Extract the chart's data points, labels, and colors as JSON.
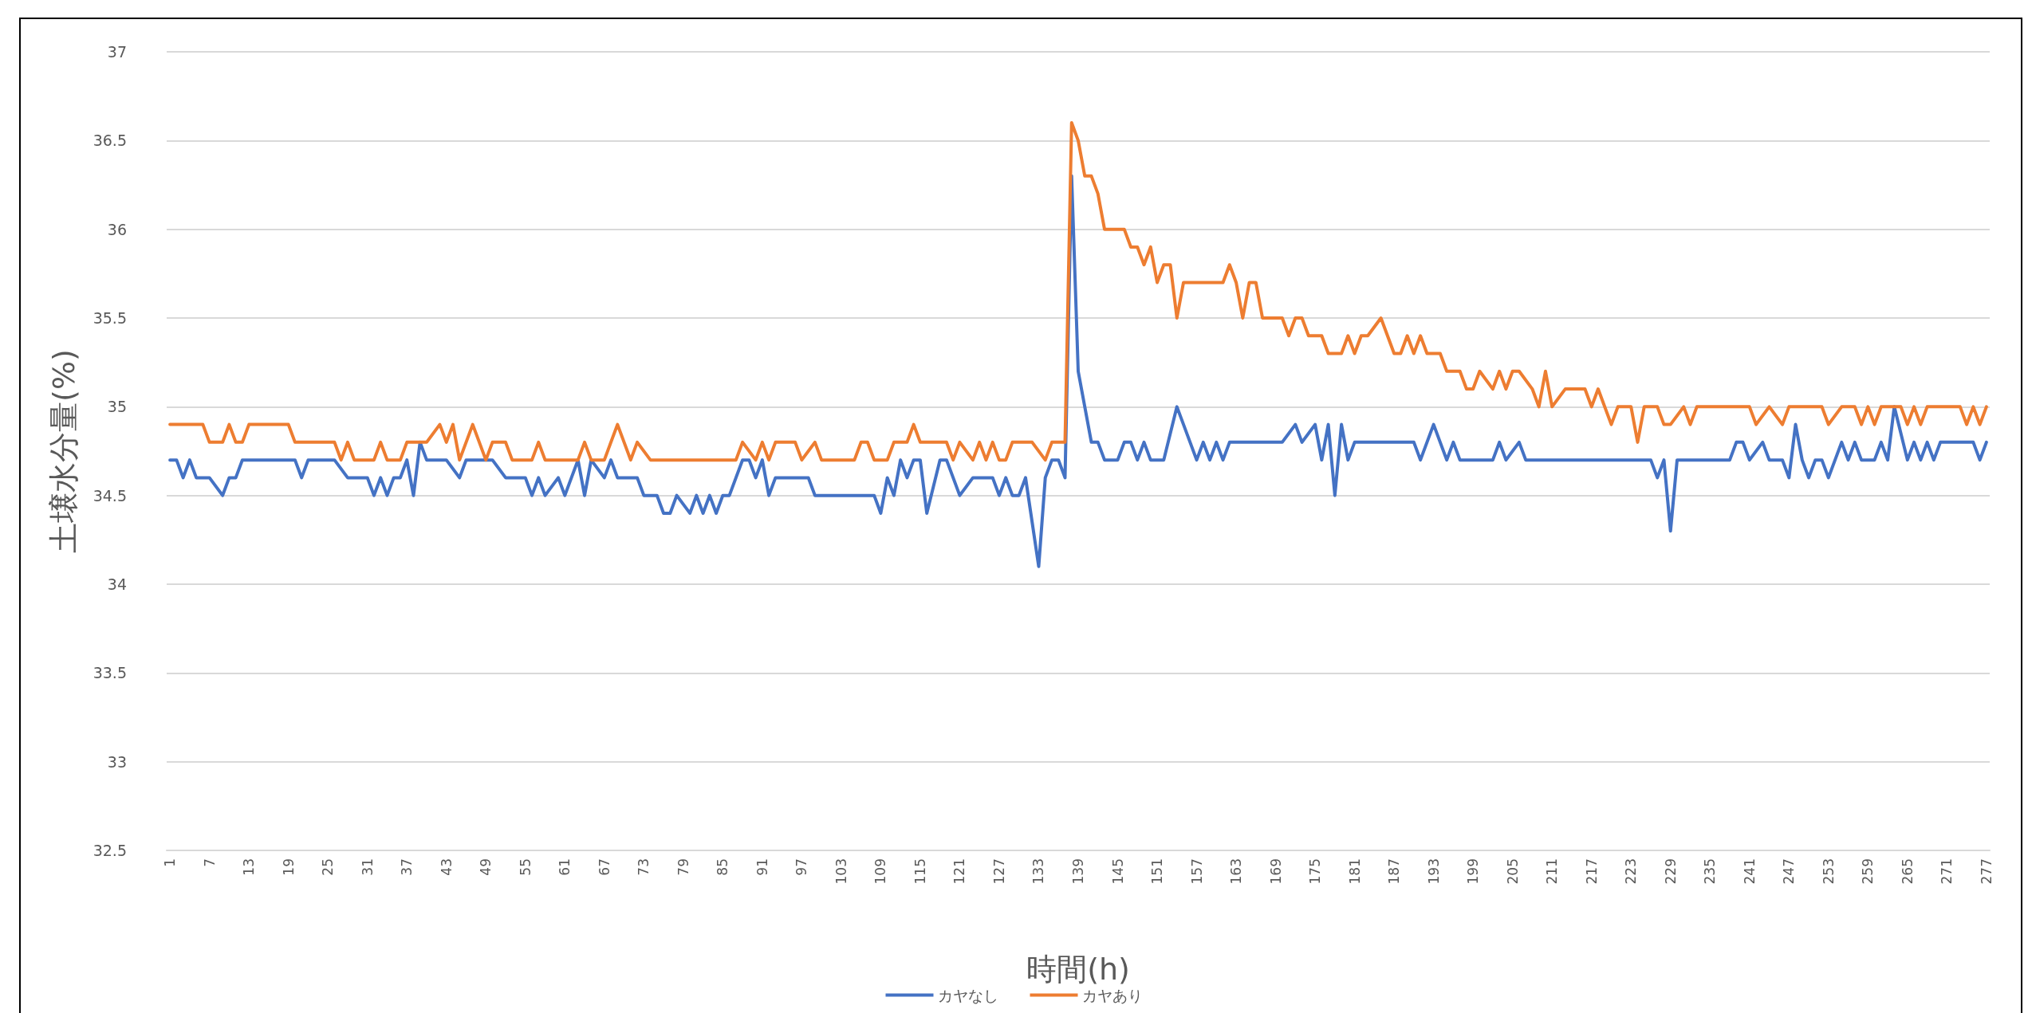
{
  "chart_data": {
    "type": "line",
    "xlabel": "時間(h)",
    "ylabel": "土壌水分量(%)",
    "xlim": [
      0.5,
      277.5
    ],
    "xticks": [
      1,
      7,
      13,
      19,
      25,
      31,
      37,
      43,
      49,
      55,
      61,
      67,
      73,
      79,
      85,
      91,
      97,
      103,
      109,
      115,
      121,
      127,
      133,
      139,
      145,
      151,
      157,
      163,
      169,
      175,
      181,
      187,
      193,
      199,
      205,
      211,
      217,
      223,
      229,
      235,
      241,
      247,
      253,
      259,
      265,
      271,
      277
    ],
    "ylim": [
      32.5,
      37
    ],
    "yticks": [
      32.5,
      33,
      33.5,
      34,
      34.5,
      35,
      35.5,
      36,
      36.5,
      37
    ],
    "grid": "y",
    "legend": "bottom",
    "marker": "none",
    "line_style": "solid",
    "series": [
      {
        "name": "カヤなし",
        "color": "#4472c4",
        "x": [
          1,
          2,
          3,
          4,
          5,
          7,
          9,
          10,
          11,
          12,
          20,
          21,
          22,
          26,
          28,
          31,
          32,
          33,
          34,
          35,
          36,
          37,
          38,
          39,
          40,
          43,
          45,
          46,
          50,
          52,
          55,
          56,
          57,
          58,
          60,
          61,
          63,
          64,
          65,
          67,
          68,
          69,
          72,
          73,
          75,
          76,
          77,
          78,
          80,
          81,
          82,
          83,
          84,
          85,
          86,
          87,
          88,
          89,
          90,
          91,
          92,
          93,
          98,
          99,
          108,
          109,
          110,
          111,
          112,
          113,
          114,
          115,
          116,
          118,
          119,
          121,
          123,
          126,
          127,
          128,
          129,
          130,
          131,
          133,
          134,
          135,
          136,
          137,
          138,
          139,
          140,
          141,
          142,
          143,
          145,
          146,
          147,
          148,
          149,
          150,
          152,
          154,
          155,
          156,
          157,
          158,
          159,
          160,
          161,
          162,
          170,
          172,
          173,
          175,
          176,
          177,
          178,
          179,
          180,
          181,
          190,
          191,
          193,
          194,
          195,
          196,
          197,
          202,
          203,
          204,
          206,
          207,
          226,
          227,
          228,
          229,
          230,
          238,
          239,
          240,
          241,
          243,
          244,
          246,
          247,
          248,
          249,
          250,
          251,
          252,
          253,
          255,
          256,
          257,
          258,
          260,
          261,
          262,
          263,
          265,
          266,
          267,
          268,
          269,
          270,
          275,
          276,
          277
        ],
        "values": [
          34.7,
          34.7,
          34.6,
          34.7,
          34.6,
          34.6,
          34.5,
          34.6,
          34.6,
          34.7,
          34.7,
          34.6,
          34.7,
          34.7,
          34.6,
          34.6,
          34.5,
          34.6,
          34.5,
          34.6,
          34.6,
          34.7,
          34.5,
          34.8,
          34.7,
          34.7,
          34.6,
          34.7,
          34.7,
          34.6,
          34.6,
          34.5,
          34.6,
          34.5,
          34.6,
          34.5,
          34.7,
          34.5,
          34.7,
          34.6,
          34.7,
          34.6,
          34.6,
          34.5,
          34.5,
          34.4,
          34.4,
          34.5,
          34.4,
          34.5,
          34.4,
          34.5,
          34.4,
          34.5,
          34.5,
          34.6,
          34.7,
          34.7,
          34.6,
          34.7,
          34.5,
          34.6,
          34.6,
          34.5,
          34.5,
          34.4,
          34.6,
          34.5,
          34.7,
          34.6,
          34.7,
          34.7,
          34.4,
          34.7,
          34.7,
          34.5,
          34.6,
          34.6,
          34.5,
          34.6,
          34.5,
          34.5,
          34.6,
          34.1,
          34.6,
          34.7,
          34.7,
          34.6,
          36.3,
          35.2,
          35.0,
          34.8,
          34.8,
          34.7,
          34.7,
          34.8,
          34.8,
          34.7,
          34.8,
          34.7,
          34.7,
          35.0,
          34.9,
          34.8,
          34.7,
          34.8,
          34.7,
          34.8,
          34.7,
          34.8,
          34.8,
          34.9,
          34.8,
          34.9,
          34.7,
          34.9,
          34.5,
          34.9,
          34.7,
          34.8,
          34.8,
          34.7,
          34.9,
          34.8,
          34.7,
          34.8,
          34.7,
          34.7,
          34.8,
          34.7,
          34.8,
          34.7,
          34.7,
          34.6,
          34.7,
          34.3,
          34.7,
          34.7,
          34.8,
          34.8,
          34.7,
          34.8,
          34.7,
          34.7,
          34.6,
          34.9,
          34.7,
          34.6,
          34.7,
          34.7,
          34.6,
          34.8,
          34.7,
          34.8,
          34.7,
          34.7,
          34.8,
          34.7,
          35.0,
          34.7,
          34.8,
          34.7,
          34.8,
          34.7,
          34.8,
          34.8,
          34.7,
          34.8
        ]
      },
      {
        "name": "カヤあり",
        "color": "#ed7d31",
        "x": [
          1,
          6,
          7,
          9,
          10,
          11,
          12,
          13,
          19,
          20,
          26,
          27,
          28,
          29,
          32,
          33,
          34,
          36,
          37,
          40,
          42,
          43,
          44,
          45,
          47,
          49,
          50,
          52,
          53,
          56,
          57,
          58,
          63,
          64,
          65,
          67,
          69,
          71,
          72,
          74,
          87,
          88,
          90,
          91,
          92,
          93,
          96,
          97,
          99,
          100,
          105,
          106,
          107,
          108,
          110,
          111,
          113,
          114,
          115,
          119,
          120,
          121,
          123,
          124,
          125,
          126,
          127,
          128,
          129,
          132,
          134,
          135,
          137,
          138,
          139,
          140,
          141,
          142,
          143,
          146,
          147,
          148,
          149,
          150,
          151,
          152,
          153,
          154,
          155,
          161,
          162,
          163,
          164,
          165,
          166,
          167,
          170,
          171,
          172,
          173,
          174,
          176,
          177,
          179,
          180,
          181,
          182,
          183,
          185,
          187,
          188,
          189,
          190,
          191,
          192,
          194,
          195,
          197,
          198,
          199,
          200,
          202,
          203,
          204,
          205,
          206,
          208,
          209,
          210,
          211,
          213,
          216,
          217,
          218,
          220,
          221,
          223,
          224,
          225,
          227,
          228,
          229,
          231,
          232,
          233,
          241,
          242,
          244,
          246,
          247,
          252,
          253,
          255,
          257,
          258,
          259,
          260,
          261,
          264,
          265,
          266,
          267,
          268,
          273,
          274,
          275,
          276,
          277
        ],
        "values": [
          34.9,
          34.9,
          34.8,
          34.8,
          34.9,
          34.8,
          34.8,
          34.9,
          34.9,
          34.8,
          34.8,
          34.7,
          34.8,
          34.7,
          34.7,
          34.8,
          34.7,
          34.7,
          34.8,
          34.8,
          34.9,
          34.8,
          34.9,
          34.7,
          34.9,
          34.7,
          34.8,
          34.8,
          34.7,
          34.7,
          34.8,
          34.7,
          34.7,
          34.8,
          34.7,
          34.7,
          34.9,
          34.7,
          34.8,
          34.7,
          34.7,
          34.8,
          34.7,
          34.8,
          34.7,
          34.8,
          34.8,
          34.7,
          34.8,
          34.7,
          34.7,
          34.8,
          34.8,
          34.7,
          34.7,
          34.8,
          34.8,
          34.9,
          34.8,
          34.8,
          34.7,
          34.8,
          34.7,
          34.8,
          34.7,
          34.8,
          34.7,
          34.7,
          34.8,
          34.8,
          34.7,
          34.8,
          34.8,
          36.6,
          36.5,
          36.3,
          36.3,
          36.2,
          36.0,
          36.0,
          35.9,
          35.9,
          35.8,
          35.9,
          35.7,
          35.8,
          35.8,
          35.5,
          35.7,
          35.7,
          35.8,
          35.7,
          35.5,
          35.7,
          35.7,
          35.5,
          35.5,
          35.4,
          35.5,
          35.5,
          35.4,
          35.4,
          35.3,
          35.3,
          35.4,
          35.3,
          35.4,
          35.4,
          35.5,
          35.3,
          35.3,
          35.4,
          35.3,
          35.4,
          35.3,
          35.3,
          35.2,
          35.2,
          35.1,
          35.1,
          35.2,
          35.1,
          35.2,
          35.1,
          35.2,
          35.2,
          35.1,
          35.0,
          35.2,
          35.0,
          35.1,
          35.1,
          35.0,
          35.1,
          34.9,
          35.0,
          35.0,
          34.8,
          35.0,
          35.0,
          34.9,
          34.9,
          35.0,
          34.9,
          35.0,
          35.0,
          34.9,
          35.0,
          34.9,
          35.0,
          35.0,
          34.9,
          35.0,
          35.0,
          34.9,
          35.0,
          34.9,
          35.0,
          35.0,
          34.9,
          35.0,
          34.9,
          35.0,
          35.0,
          34.9,
          35.0,
          34.9,
          35.0
        ]
      }
    ]
  }
}
